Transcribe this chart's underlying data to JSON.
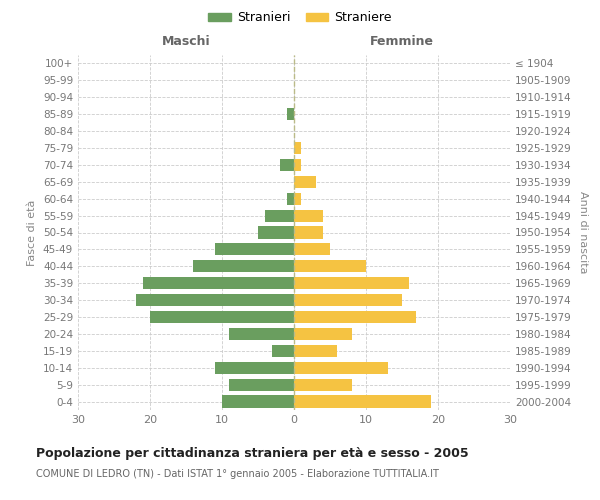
{
  "age_groups": [
    "100+",
    "95-99",
    "90-94",
    "85-89",
    "80-84",
    "75-79",
    "70-74",
    "65-69",
    "60-64",
    "55-59",
    "50-54",
    "45-49",
    "40-44",
    "35-39",
    "30-34",
    "25-29",
    "20-24",
    "15-19",
    "10-14",
    "5-9",
    "0-4"
  ],
  "birth_years": [
    "≤ 1904",
    "1905-1909",
    "1910-1914",
    "1915-1919",
    "1920-1924",
    "1925-1929",
    "1930-1934",
    "1935-1939",
    "1940-1944",
    "1945-1949",
    "1950-1954",
    "1955-1959",
    "1960-1964",
    "1965-1969",
    "1970-1974",
    "1975-1979",
    "1980-1984",
    "1985-1989",
    "1990-1994",
    "1995-1999",
    "2000-2004"
  ],
  "males": [
    0,
    0,
    0,
    1,
    0,
    0,
    2,
    0,
    1,
    4,
    5,
    11,
    14,
    21,
    22,
    20,
    9,
    3,
    11,
    9,
    10
  ],
  "females": [
    0,
    0,
    0,
    0,
    0,
    1,
    1,
    3,
    1,
    4,
    4,
    5,
    10,
    16,
    15,
    17,
    8,
    6,
    13,
    8,
    19
  ],
  "male_color": "#6a9e5f",
  "female_color": "#f5c342",
  "grid_color": "#cccccc",
  "center_line_color": "#aaaaaa",
  "title": "Popolazione per cittadinanza straniera per età e sesso - 2005",
  "subtitle": "COMUNE DI LEDRO (TN) - Dati ISTAT 1° gennaio 2005 - Elaborazione TUTTITALIA.IT",
  "ylabel_left": "Fasce di età",
  "ylabel_right": "Anni di nascita",
  "header_left": "Maschi",
  "header_right": "Femmine",
  "legend_male": "Stranieri",
  "legend_female": "Straniere",
  "xlim": 30
}
